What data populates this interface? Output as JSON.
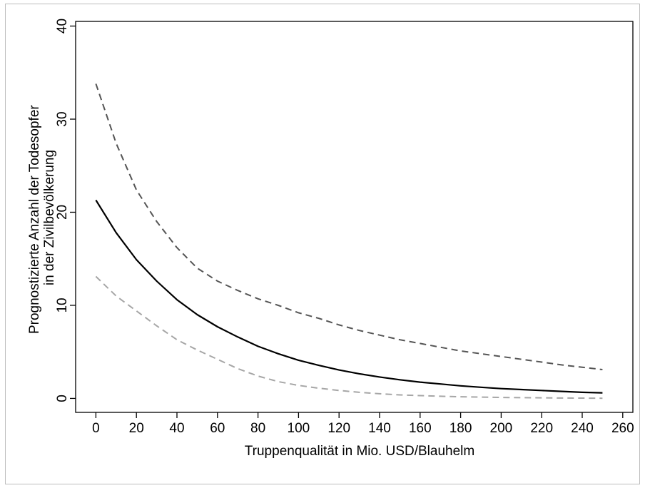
{
  "chart_data": {
    "type": "line",
    "title": "",
    "xlabel": "Truppenqualität in Mio. USD/Blauhelm",
    "ylabel": [
      "Prognostizierte Anzahl der Todesopfer",
      "in der Zivilbevölkerung"
    ],
    "xlim": [
      -10,
      265
    ],
    "ylim": [
      -1.5,
      40.5
    ],
    "xticks": [
      0,
      20,
      40,
      60,
      80,
      100,
      120,
      140,
      160,
      180,
      200,
      220,
      240,
      260
    ],
    "yticks": [
      0,
      10,
      20,
      30,
      40
    ],
    "grid": false,
    "legend": "none",
    "x": [
      0,
      10,
      20,
      30,
      40,
      50,
      60,
      70,
      80,
      90,
      100,
      110,
      120,
      130,
      140,
      150,
      160,
      170,
      180,
      190,
      200,
      210,
      220,
      230,
      240,
      250
    ],
    "series": [
      {
        "style": "solid",
        "color": "#000000",
        "values": [
          21.3,
          17.8,
          14.9,
          12.6,
          10.6,
          9.0,
          7.7,
          6.6,
          5.6,
          4.8,
          4.1,
          3.55,
          3.05,
          2.65,
          2.3,
          2.0,
          1.75,
          1.55,
          1.35,
          1.2,
          1.05,
          0.95,
          0.85,
          0.75,
          0.65,
          0.6
        ]
      },
      {
        "style": "dashed",
        "color": "#555555",
        "values": [
          33.8,
          27.4,
          22.4,
          19.0,
          16.2,
          14.0,
          12.6,
          11.6,
          10.7,
          10.0,
          9.2,
          8.6,
          7.9,
          7.3,
          6.8,
          6.3,
          5.9,
          5.5,
          5.1,
          4.8,
          4.5,
          4.2,
          3.9,
          3.6,
          3.35,
          3.1
        ]
      },
      {
        "style": "dashed",
        "color": "#a6a6a6",
        "values": [
          13.1,
          11.0,
          9.4,
          7.8,
          6.3,
          5.2,
          4.2,
          3.2,
          2.4,
          1.8,
          1.4,
          1.1,
          0.85,
          0.65,
          0.5,
          0.38,
          0.3,
          0.23,
          0.18,
          0.14,
          0.1,
          0.08,
          0.06,
          0.04,
          0.03,
          0.02
        ]
      }
    ]
  }
}
